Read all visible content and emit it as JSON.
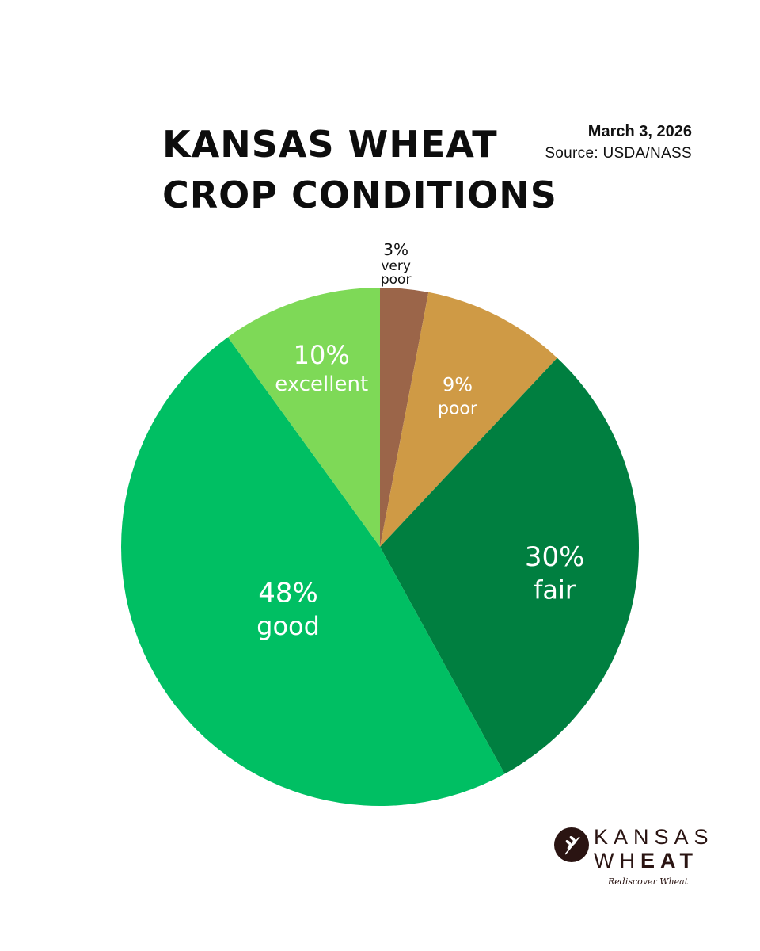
{
  "title_line1": "KANSAS WHEAT",
  "title_line2": "CROP CONDITIONS",
  "date": "March 3, 2026",
  "source": "Source: USDA/NASS",
  "logo": {
    "line1": "KANSAS",
    "line2_part1": "WH",
    "line2_part2": "EAT",
    "tagline": "Rediscover Wheat"
  },
  "chart_data": {
    "type": "pie",
    "title": "KANSAS WHEAT CROP CONDITIONS",
    "start": "12 o'clock",
    "direction": "clockwise",
    "slices": [
      {
        "category": "very poor",
        "value": 3,
        "value_label": "3%",
        "color": "#9b6549",
        "text_color": "#111111"
      },
      {
        "category": "poor",
        "value": 9,
        "value_label": "9%",
        "color": "#cf9a45",
        "text_color": "#ffffff"
      },
      {
        "category": "fair",
        "value": 30,
        "value_label": "30%",
        "color": "#007f40",
        "text_color": "#ffffff"
      },
      {
        "category": "good",
        "value": 48,
        "value_label": "48%",
        "color": "#00bf63",
        "text_color": "#ffffff"
      },
      {
        "category": "excellent",
        "value": 10,
        "value_label": "10%",
        "color": "#7ed957",
        "text_color": "#ffffff"
      }
    ]
  }
}
